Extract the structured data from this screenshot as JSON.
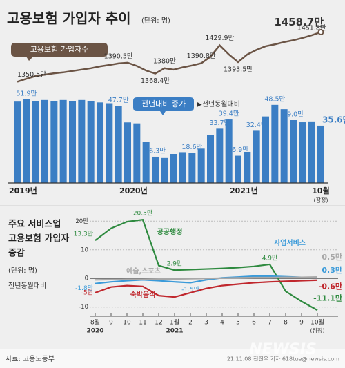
{
  "chart_data": [
    {
      "type": "combo",
      "title": "고용보험 가입자 추이",
      "unit": "(단위: 명)",
      "categories": [
        "2019년",
        null,
        null,
        null,
        null,
        null,
        null,
        null,
        null,
        null,
        null,
        null,
        "2020년",
        null,
        null,
        null,
        null,
        null,
        null,
        null,
        null,
        null,
        null,
        null,
        "2021년",
        null,
        null,
        null,
        null,
        null,
        null,
        null,
        null,
        "10월"
      ],
      "x_note": "(잠정)",
      "annotation": "▶전년동월대비",
      "ylim": [
        0,
        60
      ],
      "y2lim": [
        1300,
        1470
      ],
      "series": [
        {
          "name": "전년대비 증가",
          "type": "bar",
          "color": "#3b7ec4",
          "values": [
            50.5,
            51.9,
            51.0,
            51.5,
            51.0,
            51.5,
            51.0,
            51.5,
            51.0,
            50.0,
            49.5,
            47.7,
            37.6,
            37.0,
            25.3,
            16.3,
            15.5,
            18.0,
            19.1,
            18.6,
            21.3,
            30.0,
            33.7,
            39.4,
            16.9,
            19.3,
            32.4,
            41.3,
            48.5,
            45.8,
            39.0,
            37.7,
            38.2,
            35.6
          ],
          "value_labels": [
            null,
            "51.9만",
            null,
            null,
            null,
            null,
            null,
            null,
            null,
            null,
            null,
            "47.7만",
            null,
            null,
            null,
            "16.3만",
            null,
            null,
            null,
            "18.6만",
            null,
            null,
            "33.7만",
            "39.4만",
            "16.9만",
            null,
            "32.4만",
            null,
            "48.5만",
            null,
            "39.0만",
            null,
            null,
            "35.6만"
          ]
        },
        {
          "name": "고용보험 가입자수",
          "type": "line",
          "axis": "y2",
          "color": "#6b5445",
          "values": [
            1350.5,
            1357,
            1363,
            1366,
            1369,
            1371,
            1374,
            1377,
            1380,
            1384,
            1387,
            1390.5,
            1392,
            1385,
            1375,
            1368.4,
            1380,
            1377,
            1382,
            1386,
            1390.8,
            1405,
            1429.9,
            1410,
            1393.5,
            1410,
            1420,
            1428,
            1432,
            1437,
            1441,
            1446,
            1451.8,
            1458.7
          ],
          "value_labels": [
            "1350.5만",
            null,
            null,
            null,
            null,
            null,
            null,
            null,
            null,
            null,
            null,
            "1390.5만",
            null,
            null,
            null,
            "1368.4만",
            "1380만",
            null,
            null,
            null,
            "1390.8만",
            null,
            "1429.9만",
            null,
            "1393.5만",
            null,
            null,
            null,
            null,
            null,
            null,
            null,
            "1451.8만",
            "1458.7만"
          ]
        }
      ]
    },
    {
      "type": "line",
      "title": [
        "주요 서비스업",
        "고용보험 가입자",
        "증감"
      ],
      "unit": "(단위: 명)",
      "subtitle": "전년동월대비",
      "categories": [
        "8월",
        "9",
        "10",
        "11",
        "12",
        "1월",
        "2",
        "3",
        "4",
        "5",
        "6",
        "7",
        "8",
        "9",
        "10월"
      ],
      "x_years": [
        "2020",
        "2021"
      ],
      "x_note": "(잠정)",
      "ylim": [
        -12,
        22
      ],
      "yticks": [
        {
          "value": 20,
          "label": "20만"
        },
        10,
        0,
        -10
      ],
      "grid": true,
      "series": [
        {
          "name": "공공행정",
          "color": "#2e8a3f",
          "values": [
            13.3,
            17.5,
            19.8,
            20.5,
            4.5,
            2.9,
            3.1,
            3.3,
            3.5,
            3.8,
            4.2,
            4.9,
            -4.5,
            -8,
            -11.1
          ],
          "value_labels": [
            "13.3만",
            null,
            null,
            "20.5만",
            null,
            "2.9만",
            null,
            null,
            null,
            null,
            null,
            "4.9만",
            null,
            null,
            "-11.1만"
          ]
        },
        {
          "name": "사업서비스",
          "color": "#3a9ad9",
          "values": [
            -1.8,
            -1.2,
            -0.8,
            -0.5,
            -0.8,
            -1.2,
            -1.5,
            -0.5,
            0.2,
            0.5,
            0.8,
            0.8,
            0.6,
            0.4,
            0.3
          ],
          "value_labels": [
            "-1.8만",
            null,
            null,
            null,
            null,
            null,
            "-1.5만",
            null,
            null,
            null,
            null,
            null,
            null,
            null,
            "0.3만"
          ]
        },
        {
          "name": "예술,스포츠",
          "color": "#a8a8a8",
          "values": [
            -0.5,
            -0.4,
            -0.3,
            -0.3,
            -0.2,
            -0.2,
            -0.1,
            0,
            0.1,
            0.2,
            0.3,
            0.3,
            0.4,
            0.4,
            0.5
          ],
          "value_labels": [
            null,
            null,
            null,
            null,
            null,
            null,
            null,
            null,
            null,
            null,
            null,
            null,
            null,
            null,
            "0.5만"
          ]
        },
        {
          "name": "숙박음식",
          "color": "#c0272d",
          "values": [
            -5,
            -3,
            -2.5,
            -2.8,
            -6,
            -6.5,
            -5,
            -3.5,
            -2.5,
            -2,
            -1.5,
            -1.2,
            -1,
            -0.8,
            -0.6
          ],
          "value_labels": [
            "-5만",
            null,
            null,
            null,
            null,
            null,
            null,
            null,
            null,
            null,
            null,
            null,
            null,
            null,
            "-0.6만"
          ]
        }
      ]
    }
  ],
  "footer": {
    "source": "자료: 고용노동부",
    "credit": "21.11.08 전진우 기자 618tue@newsis.com",
    "watermark": "NEWSIS"
  }
}
